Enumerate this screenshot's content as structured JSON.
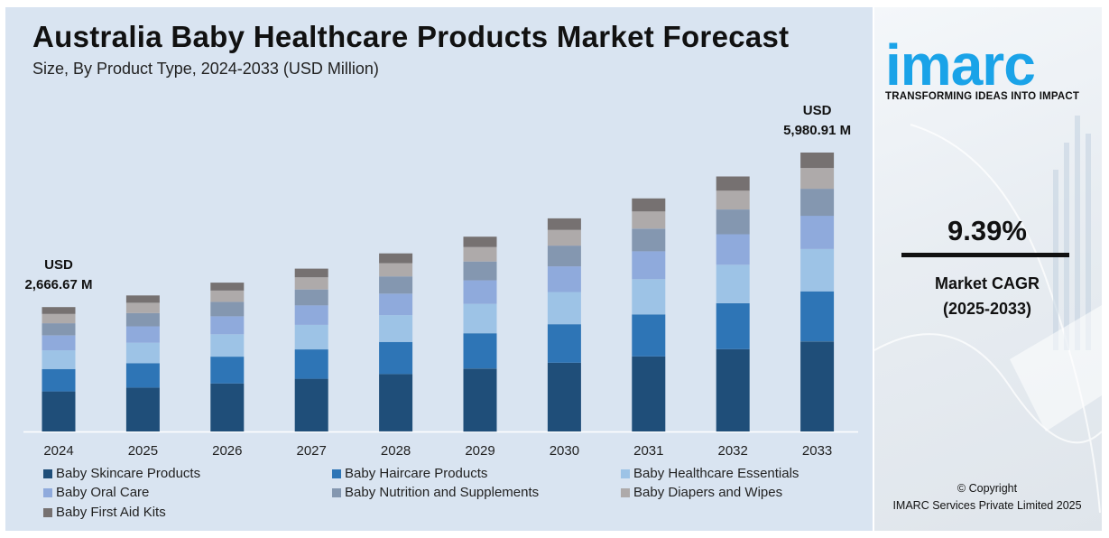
{
  "chart_data": {
    "type": "bar",
    "stacked": true,
    "title": "Australia Baby Healthcare Products Market Forecast",
    "subtitle": "Size, By Product Type, 2024-2033 (USD Million)",
    "categories": [
      "2024",
      "2025",
      "2026",
      "2027",
      "2028",
      "2029",
      "2030",
      "2031",
      "2032",
      "2033"
    ],
    "totals": [
      2666.67,
      2917,
      3191,
      3491,
      3819,
      4177,
      4570,
      4998,
      5468,
      5980.91
    ],
    "series": [
      {
        "name": "Baby Skincare Products",
        "color": "#1f4e79",
        "values": [
          860,
          940,
          1030,
          1130,
          1230,
          1350,
          1475,
          1610,
          1765,
          1930
        ]
      },
      {
        "name": "Baby Haircare Products",
        "color": "#2e75b6",
        "values": [
          480,
          525,
          575,
          630,
          690,
          755,
          825,
          900,
          985,
          1075
        ]
      },
      {
        "name": "Baby Healthcare Essentials",
        "color": "#9dc3e6",
        "values": [
          400,
          440,
          480,
          525,
          575,
          630,
          690,
          755,
          825,
          905
        ]
      },
      {
        "name": "Baby Oral Care",
        "color": "#8faadc",
        "values": [
          320,
          350,
          385,
          420,
          460,
          505,
          550,
          600,
          655,
          715
        ]
      },
      {
        "name": "Baby Nutrition and Supplements",
        "color": "#8497b0",
        "values": [
          260,
          285,
          310,
          340,
          370,
          405,
          445,
          485,
          530,
          580
        ]
      },
      {
        "name": "Baby Diapers and Wipes",
        "color": "#aeaaaa",
        "values": [
          200,
          220,
          240,
          260,
          285,
          310,
          340,
          370,
          405,
          445
        ]
      },
      {
        "name": "Baby First Aid Kits",
        "color": "#767171",
        "values": [
          146.67,
          157,
          171,
          186,
          209,
          222,
          245,
          278,
          303,
          330.91
        ]
      }
    ],
    "annotations": [
      {
        "category": "2024",
        "lines": [
          "USD",
          "2,666.67 M"
        ]
      },
      {
        "category": "2033",
        "lines": [
          "USD",
          "5,980.91 M"
        ]
      }
    ],
    "grid": false,
    "legend_position": "bottom"
  },
  "brand": {
    "logo_text": "imarc",
    "tagline": "TRANSFORMING IDEAS INTO IMPACT",
    "logo_color": "#1aa3e8"
  },
  "kpi": {
    "value": "9.39%",
    "label_line1": "Market CAGR",
    "label_line2": "(2025-2033)"
  },
  "footer": {
    "line1": "© Copyright",
    "line2": "IMARC Services Private Limited 2025"
  }
}
